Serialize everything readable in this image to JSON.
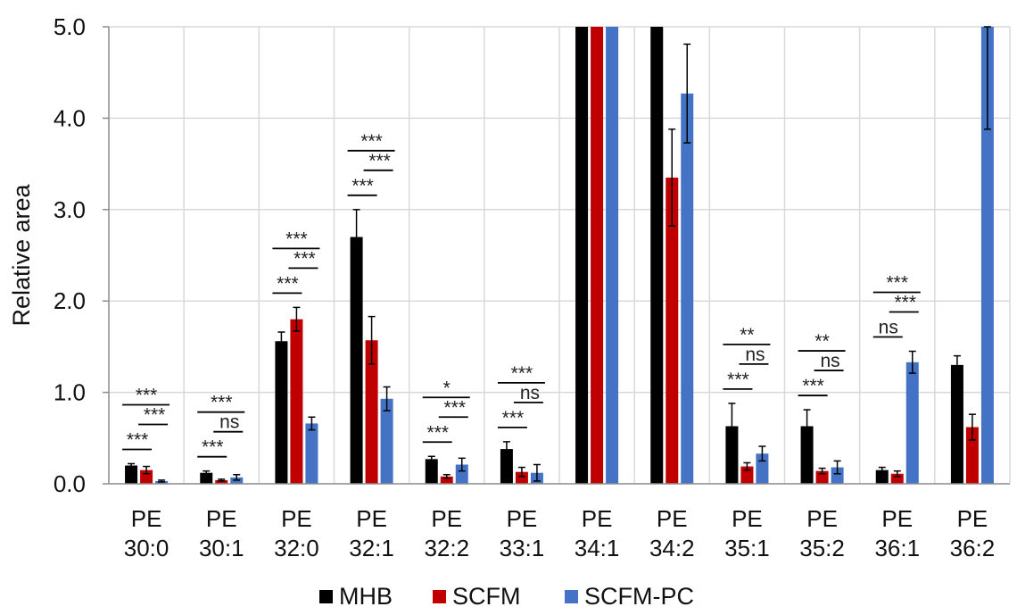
{
  "chart_data": {
    "type": "bar",
    "ylabel": "Relative area",
    "ylim": [
      0,
      5
    ],
    "yticks": [
      "0.0",
      "1.0",
      "2.0",
      "3.0",
      "4.0",
      "5.0"
    ],
    "grid": true,
    "legend_position": "bottom",
    "categories": [
      [
        "PE",
        "30:0"
      ],
      [
        "PE",
        "30:1"
      ],
      [
        "PE",
        "32:0"
      ],
      [
        "PE",
        "32:1"
      ],
      [
        "PE",
        "32:2"
      ],
      [
        "PE",
        "33:1"
      ],
      [
        "PE",
        "34:1"
      ],
      [
        "PE",
        "34:2"
      ],
      [
        "PE",
        "35:1"
      ],
      [
        "PE",
        "35:2"
      ],
      [
        "PE",
        "36:1"
      ],
      [
        "PE",
        "36:2"
      ]
    ],
    "series": [
      {
        "name": "MHB",
        "color": "#000000",
        "values": [
          0.2,
          0.12,
          1.56,
          2.7,
          0.27,
          0.38,
          5.0,
          5.0,
          0.63,
          0.63,
          0.15,
          1.3
        ],
        "errors": [
          0.02,
          0.02,
          0.1,
          0.3,
          0.03,
          0.08,
          0,
          0,
          0.25,
          0.18,
          0.03,
          0.1
        ]
      },
      {
        "name": "SCFM",
        "color": "#c00000",
        "values": [
          0.15,
          0.04,
          1.8,
          1.57,
          0.08,
          0.13,
          5.0,
          3.35,
          0.19,
          0.14,
          0.11,
          0.62
        ],
        "errors": [
          0.04,
          0.01,
          0.13,
          0.26,
          0.02,
          0.05,
          0,
          0.53,
          0.04,
          0.03,
          0.03,
          0.14
        ]
      },
      {
        "name": "SCFM-PC",
        "color": "#4472c4",
        "values": [
          0.03,
          0.07,
          0.66,
          0.93,
          0.21,
          0.12,
          5.0,
          4.27,
          0.33,
          0.18,
          1.33,
          5.0
        ],
        "errors": [
          0.01,
          0.03,
          0.07,
          0.13,
          0.07,
          0.09,
          0,
          0.54,
          0.08,
          0.07,
          0.12,
          1.12
        ]
      }
    ],
    "significance": [
      {
        "group": 0,
        "top": "***",
        "mid": "***",
        "low": "***"
      },
      {
        "group": 1,
        "top": "***",
        "mid": "ns",
        "low": "***"
      },
      {
        "group": 2,
        "top": "***",
        "mid": "***",
        "low": "***"
      },
      {
        "group": 3,
        "top": "***",
        "mid": "***",
        "low": "***"
      },
      {
        "group": 4,
        "top": "*",
        "mid": "***",
        "low": "***"
      },
      {
        "group": 5,
        "top": "***",
        "mid": "ns",
        "low": "***"
      },
      {
        "group": 8,
        "top": "**",
        "mid": "ns",
        "low": "***"
      },
      {
        "group": 9,
        "top": "**",
        "mid": "ns",
        "low": "***"
      },
      {
        "group": 10,
        "top": "***",
        "mid": "***",
        "low": "ns"
      }
    ]
  }
}
